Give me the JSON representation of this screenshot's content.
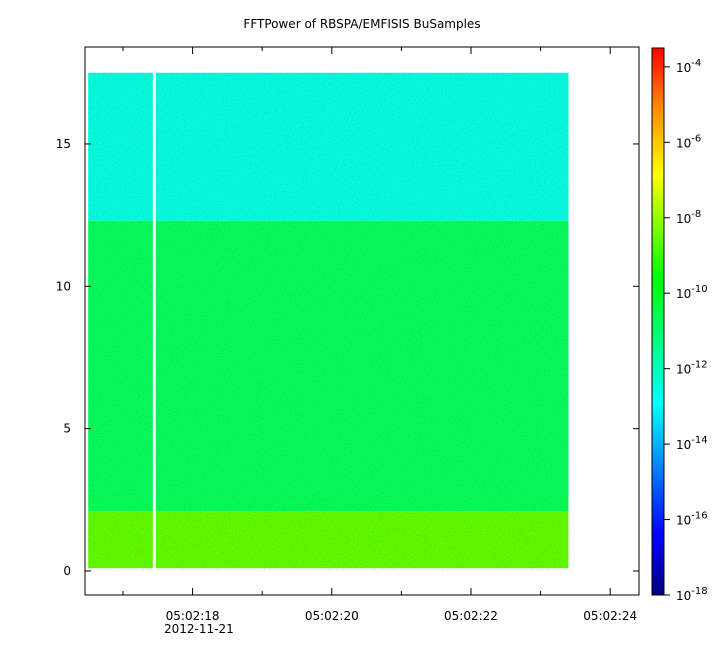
{
  "title": "FFTPower of RBSPA/EMFISIS  BuSamples",
  "chart_data": {
    "type": "heatmap",
    "title": "FFTPower of RBSPA/EMFISIS  BuSamples",
    "xlabel": "",
    "ylabel": "",
    "x_axis": {
      "type": "time",
      "range": [
        "05:02:16.5",
        "05:02:24.4"
      ],
      "tick_labels": [
        "05:02:18",
        "05:02:20",
        "05:02:22",
        "05:02:24"
      ],
      "tick_values_s": [
        18,
        20,
        22,
        24
      ],
      "minor_tick_values_s": [
        17,
        19,
        21,
        23
      ],
      "date_label": "2012-11-21"
    },
    "y_axis": {
      "range": [
        -0.8,
        18.5
      ],
      "tick_labels": [
        "0",
        "5",
        "10",
        "15"
      ],
      "tick_values": [
        0,
        5,
        10,
        15
      ]
    },
    "colorbar": {
      "scale": "log",
      "range_exponent": [
        -18,
        -3.5
      ],
      "tick_base": "10",
      "tick_exponents": [
        "-18",
        "-16",
        "-14",
        "-12",
        "-10",
        "-8",
        "-6",
        "-4"
      ],
      "colormap": "rainbow"
    },
    "data_extent": {
      "x_start_s": 16.5,
      "x_end_s": 23.4,
      "y_min": 0,
      "y_max": 17.5,
      "gap_x_s": 17.45
    },
    "regions": [
      {
        "y_from": 12.3,
        "y_to": 17.5,
        "level_exponent": -12.6,
        "description": "upper band"
      },
      {
        "y_from": 2.1,
        "y_to": 12.3,
        "level_exponent": -10.8,
        "description": "mid band"
      },
      {
        "y_from": 0.1,
        "y_to": 2.1,
        "level_exponent": -8.6,
        "description": "low band"
      }
    ],
    "grid": false,
    "legend": "colorbar-right"
  }
}
